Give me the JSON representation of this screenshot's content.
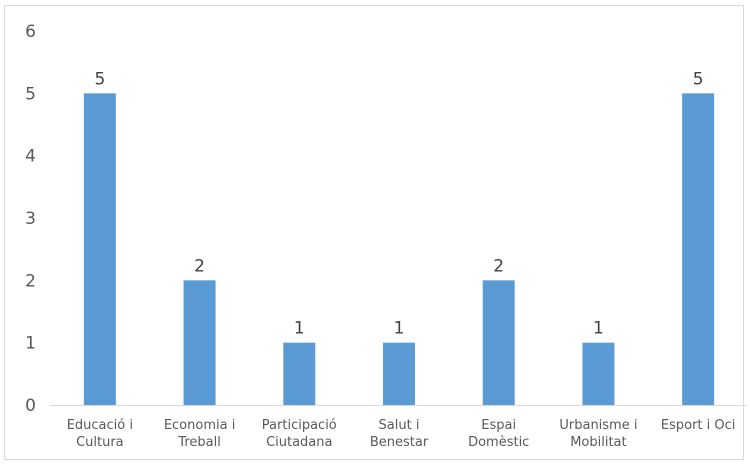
{
  "chart_data": {
    "type": "bar",
    "categories": [
      [
        "Educació i",
        "Cultura"
      ],
      [
        "Economia i",
        "Treball"
      ],
      [
        "Participació",
        "Ciutadana"
      ],
      [
        "Salut i",
        "Benestar"
      ],
      [
        "Espai",
        "Domèstic"
      ],
      [
        "Urbanisme i",
        "Mobilitat"
      ],
      [
        "Esport i Oci"
      ]
    ],
    "values": [
      5,
      2,
      1,
      1,
      2,
      1,
      5
    ],
    "data_labels": [
      "5",
      "2",
      "1",
      "1",
      "2",
      "1",
      "5"
    ],
    "y_ticks": [
      "0",
      "1",
      "2",
      "3",
      "4",
      "5",
      "6"
    ],
    "ylim": [
      0,
      6
    ],
    "grid": false,
    "legend": "none",
    "bar_color": "#5b9bd5",
    "axis_color": "#d9d9d9"
  }
}
